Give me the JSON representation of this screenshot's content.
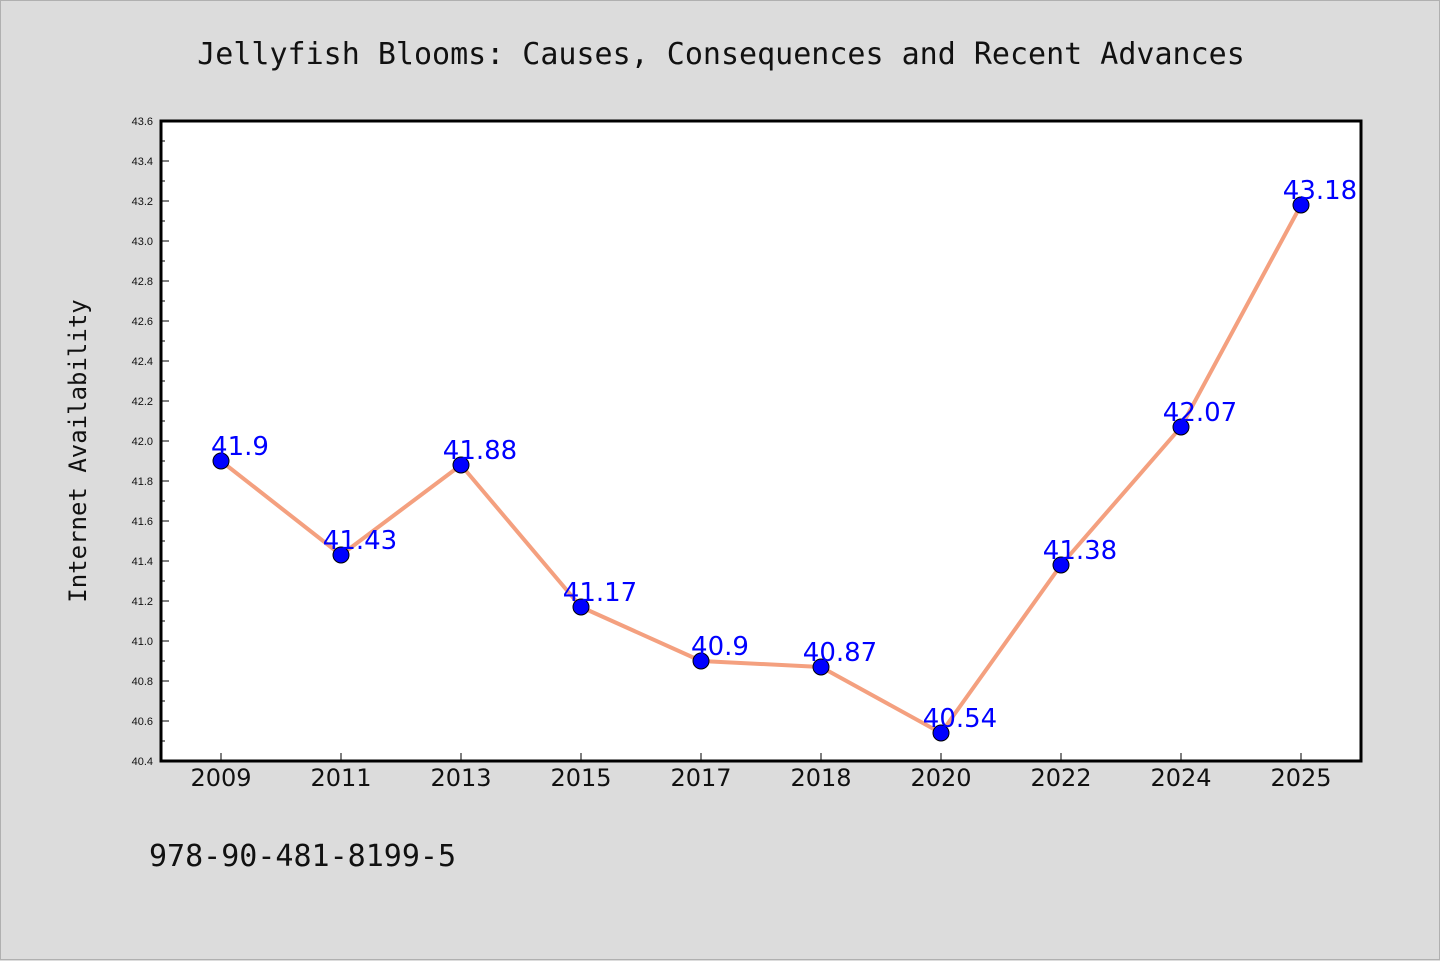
{
  "chart_data": {
    "type": "line",
    "title": "Jellyfish Blooms: Causes, Consequences and Recent Advances",
    "xlabel": "",
    "ylabel": "Internet Availability",
    "categories": [
      "2009",
      "2011",
      "2013",
      "2015",
      "2017",
      "2018",
      "2020",
      "2022",
      "2024",
      "2025"
    ],
    "values": [
      41.9,
      41.43,
      41.88,
      41.17,
      40.9,
      40.87,
      40.54,
      41.38,
      42.07,
      43.18
    ],
    "data_labels": [
      "41.9",
      "41.43",
      "41.88",
      "41.17",
      "40.9",
      "40.87",
      "40.54",
      "41.38",
      "42.07",
      "43.18"
    ],
    "ylim": [
      40.4,
      43.6
    ],
    "yticks": [
      "40.4",
      "40.6",
      "40.8",
      "41.0",
      "41.2",
      "41.4",
      "41.6",
      "41.8",
      "42.0",
      "42.2",
      "42.4",
      "42.6",
      "42.8",
      "43.0",
      "43.2",
      "43.4",
      "43.6"
    ],
    "grid": false,
    "legend": "none",
    "line_color": "#f4a07f",
    "marker_color": "#0000ff",
    "label_color": "#0000ff"
  },
  "footer": {
    "isbn": "978-90-481-8199-5"
  }
}
